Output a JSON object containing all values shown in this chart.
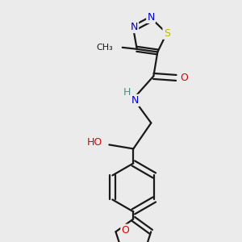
{
  "background_color": "#ebebeb",
  "bond_color": "#1a1a1a",
  "atom_colors": {
    "N": "#0000cc",
    "O": "#dd0000",
    "S": "#bbbb00",
    "C": "#1a1a1a",
    "H": "#4a9090"
  },
  "figsize": [
    3.0,
    3.0
  ],
  "dpi": 100
}
